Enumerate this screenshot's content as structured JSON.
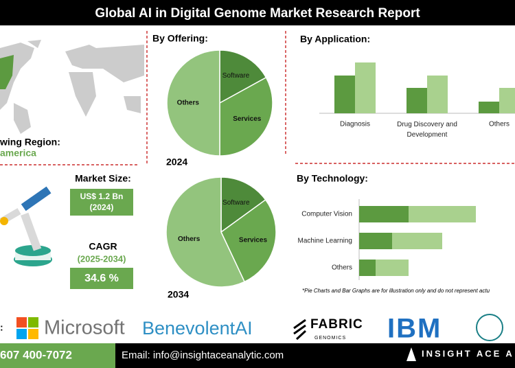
{
  "header": {
    "title": "Global AI in Digital Genome Market Research Report"
  },
  "region": {
    "label": "wing Region:",
    "value": "america"
  },
  "market_size": {
    "label": "Market Size:",
    "value": "US$ 1.2 Bn",
    "year": "(2024)"
  },
  "cagr": {
    "label": "CAGR",
    "period": "(2025-2034)",
    "value": "34.6 %"
  },
  "note": "*Pie Charts and Bar Graphs are for illustration only and do not represent actu",
  "companies": {
    "label": ":",
    "names": [
      "Microsoft",
      "BenevolentAI",
      "FABRIC",
      "GENOMICS",
      "IBM"
    ]
  },
  "footer": {
    "phone": "607 400-7072",
    "email": "Email: info@insightaceanalytic.com",
    "brand": "INSIGHT ACE A"
  },
  "chart_data": [
    {
      "type": "pie",
      "title": "By Offering:",
      "caption": "2024",
      "categories": [
        "Software",
        "Services",
        "Others"
      ],
      "values": [
        17,
        33,
        50
      ],
      "colors": [
        "#4e8a3a",
        "#6aa84f",
        "#93c47d"
      ]
    },
    {
      "type": "pie",
      "caption": "2034",
      "categories": [
        "Software",
        "Services",
        "Others"
      ],
      "values": [
        15,
        28,
        57
      ],
      "colors": [
        "#4e8a3a",
        "#6aa84f",
        "#93c47d"
      ]
    },
    {
      "type": "bar",
      "title": "By Application:",
      "categories": [
        "Diagnosis",
        "Drug Discovery and Development",
        "Others"
      ],
      "series": [
        {
          "color": "#5c9a40",
          "values": [
            55,
            37,
            17
          ]
        },
        {
          "color": "#a9d18e",
          "values": [
            74,
            55,
            37
          ]
        }
      ]
    },
    {
      "type": "stacked-barh",
      "title": "By Technology:",
      "categories": [
        "Computer Vision",
        "Machine Learning",
        "Others"
      ],
      "series": [
        {
          "color": "#5c9a40",
          "values": [
            72,
            48,
            24
          ]
        },
        {
          "color": "#a9d18e",
          "values": [
            98,
            73,
            48
          ]
        }
      ]
    }
  ]
}
